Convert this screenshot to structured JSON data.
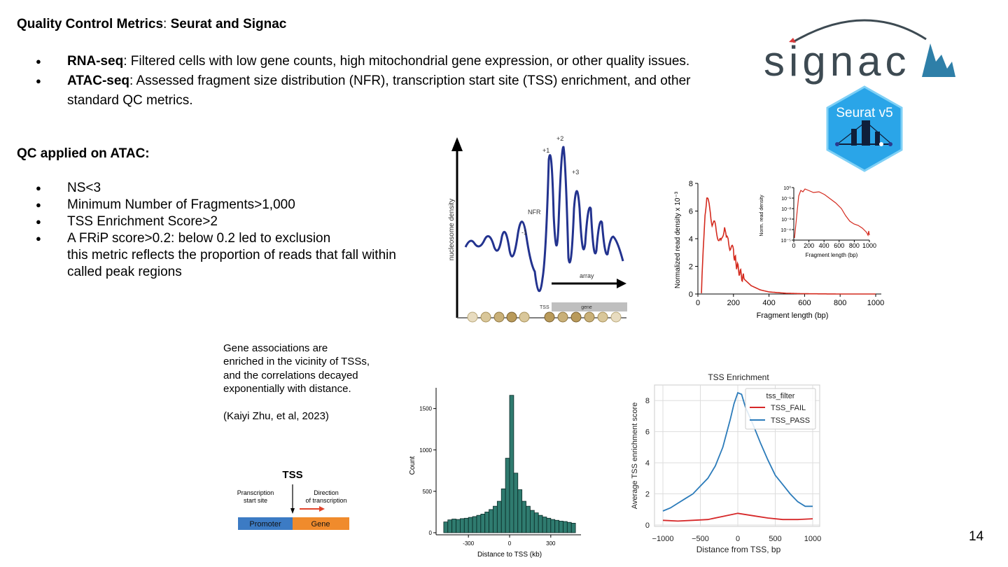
{
  "slide": {
    "title_bold": "Quality Control Metrics",
    "title_sep": ": ",
    "title_rest": "Seurat and Signac",
    "bullets1": [
      {
        "bold": "RNA-seq",
        "text": ": Filtered cells with low gene counts, high mitochondrial gene expression, or other quality issues."
      },
      {
        "bold": "ATAC-seq",
        "text": ": Assessed fragment size distribution (NFR), transcription start site (TSS) enrichment, and other standard QC metrics."
      }
    ],
    "subheading": "QC applied on ATAC:",
    "bullets2": [
      "NS<3",
      "Minimum Number of Fragments>1,000",
      "TSS Enrichment Score>2",
      "A FRiP score>0.2: below 0.2 led to exclusion"
    ],
    "bullets2_cont": [
      "this metric reflects the proportion of reads that fall within",
      "called peak regions"
    ],
    "note_text": "Gene associations are enriched in the vicinity of TSSs, and the correlations decayed exponentially with distance.",
    "citation": "(Kaiyi Zhu, et al, 2023)",
    "page_number": "14"
  },
  "logos": {
    "signac_text": "signac",
    "seurat_text": "Seurat v5",
    "signac_color": "#3d4a52",
    "seurat_color": "#2aa5e8"
  },
  "nucleosome_diagram": {
    "ylabel": "nucleosome density",
    "labels": {
      "m1": "-1",
      "p1": "+1",
      "p2": "+2",
      "p3": "+3",
      "nfr": "NFR",
      "array": "array",
      "tss": "TSS",
      "gene": "gene"
    },
    "color": "#23338f"
  },
  "tss_diagram": {
    "tss": "TSS",
    "start_site": [
      "Pranscription",
      "start site"
    ],
    "direction": [
      "Direction",
      "of transcription"
    ],
    "promoter": "Promoter",
    "gene": "Gene",
    "promoter_color": "#3c7bc4",
    "gene_color": "#f08b2c"
  },
  "chart_data": [
    {
      "type": "line",
      "title": "",
      "xlabel": "Fragment length (bp)",
      "ylabel": "Normalized read density x 10⁻³",
      "xlim": [
        0,
        1000
      ],
      "ylim": [
        0,
        8
      ],
      "x_ticks": [
        "0",
        "200",
        "400",
        "600",
        "800",
        "1000"
      ],
      "y_ticks": [
        "0",
        "2",
        "4",
        "6",
        "8"
      ],
      "color": "#d42a1e",
      "series": [
        {
          "x": [
            20,
            30,
            40,
            50,
            60,
            70,
            80,
            90,
            100,
            110,
            120,
            130,
            140,
            150,
            160,
            170,
            180,
            190,
            200,
            220,
            250,
            300,
            350,
            400,
            500,
            600,
            800,
            1000
          ],
          "y": [
            0,
            3,
            6,
            7,
            6.4,
            6,
            5.2,
            5,
            4.8,
            4.4,
            3.8,
            3.6,
            4.4,
            5,
            3.8,
            4,
            3.5,
            3.3,
            3,
            2,
            1.2,
            0.6,
            0.3,
            0.15,
            0.05,
            0.02,
            0,
            0
          ]
        }
      ],
      "inset": {
        "xlabel": "Fragment length (bp)",
        "ylabel": "Norm. read density",
        "x_ticks": [
          "0",
          "200",
          "400",
          "600",
          "800",
          "1000"
        ],
        "y_ticks": [
          "10⁰",
          "10⁻¹",
          "10⁻²",
          "10⁻³",
          "10⁻⁴",
          "10⁻⁵"
        ]
      }
    },
    {
      "type": "bar",
      "title": "",
      "xlabel": "Distance to TSS (kb)",
      "ylabel": "Count",
      "x_ticks": [
        "-300",
        "0",
        "300"
      ],
      "y_ticks": [
        "0",
        "500",
        "1000",
        "1500"
      ],
      "ylim": [
        0,
        1700
      ],
      "color": "#2f7b6f",
      "bin_width": 30,
      "bin_starts": [
        -480,
        -450,
        -420,
        -390,
        -360,
        -330,
        -300,
        -270,
        -240,
        -210,
        -180,
        -150,
        -120,
        -90,
        -60,
        -30,
        0,
        30,
        60,
        90,
        120,
        150,
        180,
        210,
        240,
        270,
        300,
        330,
        360,
        390,
        420,
        450
      ],
      "values": [
        130,
        155,
        165,
        160,
        170,
        175,
        185,
        195,
        210,
        225,
        250,
        280,
        320,
        380,
        530,
        900,
        1660,
        720,
        520,
        380,
        320,
        270,
        240,
        210,
        190,
        175,
        160,
        150,
        140,
        135,
        125,
        115
      ]
    },
    {
      "type": "line",
      "title": "TSS Enrichment",
      "xlabel": "Distance from TSS, bp",
      "ylabel": "Average TSS enrichment score",
      "xlim": [
        -1000,
        1000
      ],
      "ylim": [
        0,
        9
      ],
      "x_ticks": [
        "−1000",
        "−500",
        "0",
        "500",
        "1000"
      ],
      "y_ticks": [
        "0",
        "2",
        "4",
        "6",
        "8"
      ],
      "legend_title": "tss_filter",
      "legend_position": "top-right",
      "grid": true,
      "series": [
        {
          "name": "TSS_FAIL",
          "color": "#d62728",
          "x": [
            -1000,
            -800,
            -600,
            -400,
            -200,
            0,
            200,
            400,
            600,
            800,
            1000
          ],
          "y": [
            0.3,
            0.25,
            0.3,
            0.35,
            0.55,
            0.75,
            0.6,
            0.45,
            0.35,
            0.35,
            0.4
          ]
        },
        {
          "name": "TSS_PASS",
          "color": "#2b7bba",
          "x": [
            -1000,
            -900,
            -800,
            -700,
            -600,
            -500,
            -400,
            -300,
            -200,
            -100,
            -50,
            0,
            50,
            100,
            200,
            300,
            400,
            500,
            600,
            700,
            800,
            900,
            1000
          ],
          "y": [
            0.9,
            1.1,
            1.4,
            1.7,
            2.0,
            2.5,
            3.0,
            3.8,
            5.0,
            6.8,
            7.8,
            8.5,
            8.4,
            7.6,
            6.5,
            5.3,
            4.2,
            3.2,
            2.6,
            2.0,
            1.5,
            1.2,
            1.2
          ]
        }
      ]
    }
  ]
}
